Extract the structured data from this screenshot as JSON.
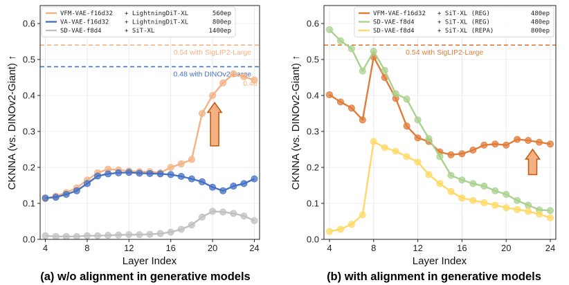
{
  "chart_data": [
    {
      "type": "line",
      "caption": "(a) w/o alignment in generative models",
      "xlabel": "Layer Index",
      "ylabel": "CKNNA (vs. DINOv2-Giant) ↑",
      "xlim": [
        3.5,
        24.5
      ],
      "ylim": [
        0,
        0.65
      ],
      "xticks": [
        4,
        8,
        12,
        16,
        20,
        24
      ],
      "yticks": [
        0.0,
        0.1,
        0.2,
        0.3,
        0.4,
        0.5,
        0.6
      ],
      "grid": true,
      "legend_position": "top-left",
      "x": [
        4,
        5,
        6,
        7,
        8,
        9,
        10,
        11,
        12,
        13,
        14,
        15,
        16,
        17,
        18,
        19,
        20,
        21,
        22,
        23,
        24
      ],
      "series": [
        {
          "name": "VFM-VAE-f16d32",
          "model": "+ LightningDiT-XL",
          "epochs": "560ep",
          "color": "#f4b183",
          "values": [
            0.113,
            0.12,
            0.13,
            0.143,
            0.165,
            0.185,
            0.195,
            0.193,
            0.19,
            0.188,
            0.188,
            0.185,
            0.2,
            0.21,
            0.222,
            0.35,
            0.4,
            0.435,
            0.46,
            0.452,
            0.443
          ]
        },
        {
          "name": "VA-VAE-f16d32",
          "model": "+ LightningDiT-XL",
          "epochs": "800ep",
          "color": "#4472c4",
          "values": [
            0.115,
            0.117,
            0.125,
            0.135,
            0.155,
            0.176,
            0.182,
            0.185,
            0.186,
            0.184,
            0.183,
            0.182,
            0.18,
            0.175,
            0.168,
            0.16,
            0.145,
            0.135,
            0.148,
            0.155,
            0.168
          ]
        },
        {
          "name": "SD-VAE-f8d4",
          "model": "+ SiT-XL",
          "epochs": "1400ep",
          "color": "#c0c0c0",
          "values": [
            0.01,
            0.008,
            0.008,
            0.008,
            0.01,
            0.01,
            0.011,
            0.012,
            0.013,
            0.013,
            0.014,
            0.016,
            0.02,
            0.028,
            0.04,
            0.062,
            0.078,
            0.076,
            0.072,
            0.065,
            0.052
          ]
        }
      ],
      "reference_lines": [
        {
          "value": 0.54,
          "label": "0.54 with SigLIP2-Large",
          "color": "#f4b183"
        },
        {
          "value": 0.48,
          "label": "0.48 with DINOv2-Large",
          "color": "#4472c4"
        }
      ],
      "annotations": [
        {
          "text": "0.46",
          "x": 23.6,
          "y": 0.435,
          "color": "#f4b183"
        }
      ],
      "arrow": {
        "x": 20.2,
        "y_bottom": 0.26,
        "y_top": 0.38,
        "color": "#c55a11",
        "fill": "#f4b183"
      }
    },
    {
      "type": "line",
      "caption": "(b) with alignment in generative models",
      "xlabel": "Layer Index",
      "ylabel": "CKNNA (vs. DINOv2-Giant) ↑",
      "xlim": [
        3.5,
        24.5
      ],
      "ylim": [
        0,
        0.65
      ],
      "xticks": [
        4,
        8,
        12,
        16,
        20,
        24
      ],
      "yticks": [
        0.0,
        0.1,
        0.2,
        0.3,
        0.4,
        0.5,
        0.6
      ],
      "grid": true,
      "legend_position": "top-right",
      "x": [
        4,
        5,
        6,
        7,
        8,
        9,
        10,
        11,
        12,
        13,
        14,
        15,
        16,
        17,
        18,
        19,
        20,
        21,
        22,
        23,
        24
      ],
      "series": [
        {
          "name": "VFM-VAE-f16d32",
          "model": "+ SiT-XL (REG)",
          "epochs": "480ep",
          "color": "#e07b39",
          "values": [
            0.402,
            0.382,
            0.365,
            0.332,
            0.507,
            0.45,
            0.392,
            0.315,
            0.282,
            0.272,
            0.243,
            0.235,
            0.238,
            0.248,
            0.262,
            0.265,
            0.262,
            0.278,
            0.275,
            0.27,
            0.265
          ]
        },
        {
          "name": "SD-VAE-f8d4",
          "model": "+ SiT-XL (REG)",
          "epochs": "480ep",
          "color": "#a9d18e",
          "values": [
            0.583,
            0.552,
            0.53,
            0.468,
            0.523,
            0.47,
            0.405,
            0.39,
            0.332,
            0.28,
            0.23,
            0.178,
            0.165,
            0.155,
            0.148,
            0.135,
            0.125,
            0.108,
            0.095,
            0.082,
            0.08
          ]
        },
        {
          "name": "SD-VAE-f8d4",
          "model": "+ SiT-XL (REPA)",
          "epochs": "800ep",
          "color": "#ffd966",
          "values": [
            0.022,
            0.028,
            0.042,
            0.068,
            0.272,
            0.255,
            0.245,
            0.23,
            0.215,
            0.18,
            0.155,
            0.133,
            0.115,
            0.108,
            0.102,
            0.095,
            0.088,
            0.083,
            0.078,
            0.07,
            0.06
          ]
        }
      ],
      "reference_lines": [
        {
          "value": 0.54,
          "label": "0.54 with SigLIP2-Large",
          "color": "#e07b39"
        }
      ],
      "annotations": [],
      "arrow": {
        "x": 22.4,
        "y_bottom": 0.18,
        "y_top": 0.25,
        "color": "#c55a11",
        "fill": "#f4b183"
      }
    }
  ]
}
